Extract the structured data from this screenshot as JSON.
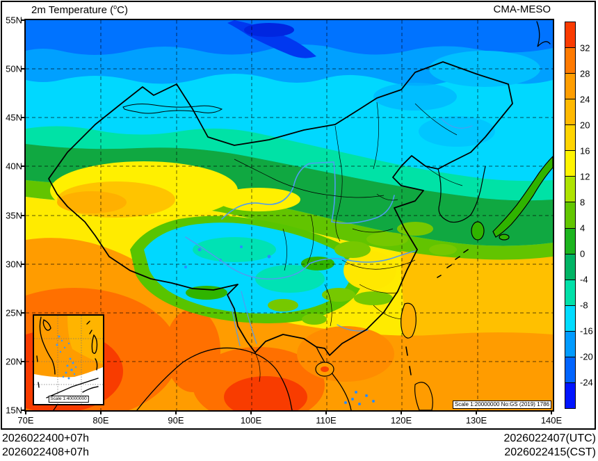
{
  "title": {
    "prefix": "2m Temperature (",
    "degree_sup": "o",
    "suffix": "C)"
  },
  "model_label": "CMA-MESO",
  "axes": {
    "lat_labels": [
      "55N",
      "50N",
      "45N",
      "40N",
      "35N",
      "30N",
      "25N",
      "20N",
      "15N"
    ],
    "lon_labels": [
      "70E",
      "80E",
      "90E",
      "100E",
      "110E",
      "120E",
      "130E",
      "140E"
    ]
  },
  "colorbar": {
    "tick_labels": [
      "32",
      "28",
      "24",
      "20",
      "16",
      "12",
      "8",
      "4",
      "0",
      "-4",
      "-8",
      "-16",
      "-20",
      "-24"
    ],
    "colors_top_to_bottom": [
      "#fa3b00",
      "#ff7a00",
      "#ff9e00",
      "#ffb900",
      "#ffd400",
      "#fff400",
      "#aee300",
      "#62c600",
      "#1cb41e",
      "#00b464",
      "#00e0a8",
      "#00dcff",
      "#009bff",
      "#0064ff",
      "#0014ff"
    ]
  },
  "map": {
    "scale_note": "Scale 1:20000000 No:GS (2019) 1786",
    "inset_scale_note": "Scale 1:40000000",
    "border_color": "#000000",
    "river_color": "#4f9cf0",
    "grid_style": "dashed"
  },
  "footer": {
    "left_lines": [
      "2026022400+07h",
      "2026022408+07h"
    ],
    "right_lines": [
      "2026022407(UTC)",
      "2026022415(CST)"
    ]
  }
}
